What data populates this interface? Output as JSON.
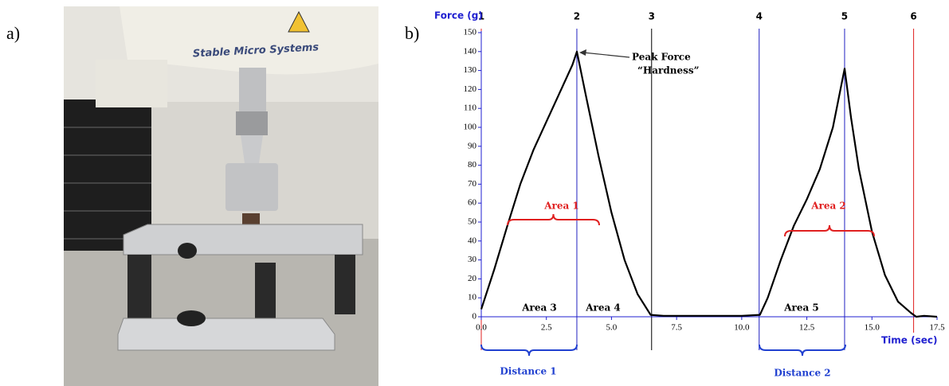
{
  "panels": {
    "a": "a)",
    "b": "b)"
  },
  "photo": {
    "label": "Stable Micro Systems"
  },
  "chart_data": {
    "type": "line",
    "ylabel": "Force (g)",
    "xlabel": "Time (sec)",
    "xlim": [
      0,
      17.5
    ],
    "ylim": [
      0,
      150
    ],
    "xticks": [
      {
        "value": 0,
        "label": "0.0"
      },
      2.5,
      {
        "value": 5,
        "label": "5.0"
      },
      7.5,
      {
        "value": 10,
        "label": "10.0"
      },
      12.5,
      {
        "value": 15,
        "label": "15.0"
      },
      17.5
    ],
    "yticks": [
      0,
      10,
      20,
      30,
      40,
      50,
      60,
      70,
      80,
      90,
      100,
      110,
      120,
      130,
      140,
      150
    ],
    "axis_color": "#1f1fd0",
    "series": [
      {
        "color": "#000000",
        "x": [
          0,
          0.5,
          1,
          1.5,
          2,
          2.5,
          3,
          3.5,
          3.67,
          4,
          4.5,
          5,
          5.5,
          6,
          6.5,
          7,
          8,
          9,
          10,
          10.7,
          11,
          11.5,
          12,
          12.5,
          13,
          13.5,
          13.95,
          14.2,
          14.5,
          15,
          15.5,
          16,
          16.5,
          16.7,
          17,
          17.5
        ],
        "values": [
          4,
          25,
          48,
          70,
          88,
          103,
          118,
          133,
          140,
          118,
          85,
          55,
          30,
          12,
          1,
          0.5,
          0.5,
          0.5,
          0.5,
          1,
          10,
          30,
          48,
          62,
          78,
          100,
          131,
          105,
          78,
          45,
          22,
          8,
          2,
          0,
          0.5,
          0
        ]
      }
    ],
    "markers": [
      {
        "label": "1",
        "x": 0,
        "color": "#e02020"
      },
      {
        "label": "2",
        "x": 3.67,
        "color": "#2020c0"
      },
      {
        "label": "3",
        "x": 6.54,
        "color": "#000000"
      },
      {
        "label": "4",
        "x": 10.67,
        "color": "#2020c0"
      },
      {
        "label": "5",
        "x": 13.95,
        "color": "#2020c0"
      },
      {
        "label": "6",
        "x": 16.6,
        "color": "#e02020"
      }
    ],
    "annotations": {
      "peak": "Peak Force",
      "hardness": "“Hardness”",
      "area1": "Area 1",
      "area2": "Area 2",
      "area3": "Area 3",
      "area4": "Area 4",
      "area5": "Area 5",
      "distance1": "Distance 1",
      "distance2": "Distance 2"
    }
  }
}
